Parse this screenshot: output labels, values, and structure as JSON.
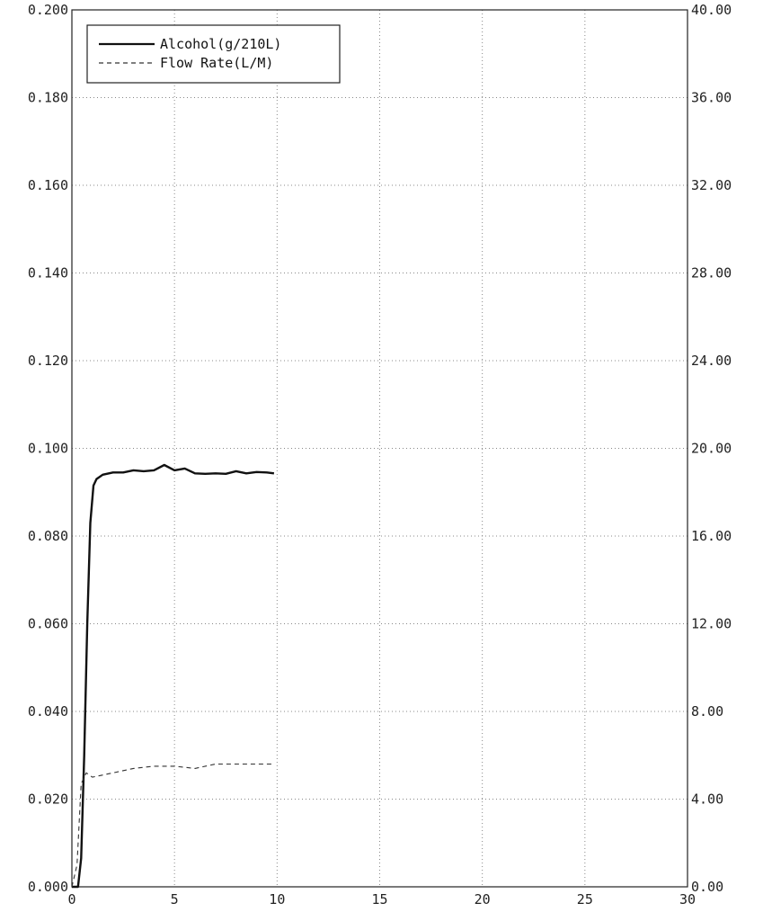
{
  "chart_data": {
    "type": "line",
    "title": "",
    "xlabel": "",
    "ylabel": "",
    "xlim": [
      0,
      30
    ],
    "ylim_left": [
      0,
      0.2
    ],
    "ylim_right": [
      0,
      40
    ],
    "x_ticks": [
      "0",
      "5",
      "10",
      "15",
      "20",
      "25",
      "30"
    ],
    "y_left_ticks": [
      "0.000",
      "0.020",
      "0.040",
      "0.060",
      "0.080",
      "0.100",
      "0.120",
      "0.140",
      "0.160",
      "0.180",
      "0.200"
    ],
    "y_right_ticks": [
      "0.00",
      "4.00",
      "8.00",
      "12.00",
      "16.00",
      "20.00",
      "24.00",
      "28.00",
      "32.00",
      "36.00",
      "40.00"
    ],
    "grid": true,
    "legend_position": "top-left",
    "series": [
      {
        "name": "Alcohol(g/210L)",
        "axis": "left",
        "style": "solid",
        "x": [
          0,
          0.3,
          0.45,
          0.6,
          0.75,
          0.9,
          1.05,
          1.2,
          1.5,
          2.0,
          2.5,
          3.0,
          3.5,
          4.0,
          4.5,
          5.0,
          5.5,
          6.0,
          6.5,
          7.0,
          7.5,
          8.0,
          8.5,
          9.0,
          9.5,
          9.85
        ],
        "y": [
          0.0,
          0.0,
          0.0065,
          0.03,
          0.06,
          0.083,
          0.0915,
          0.093,
          0.094,
          0.0945,
          0.0945,
          0.095,
          0.0948,
          0.095,
          0.0962,
          0.095,
          0.0954,
          0.0943,
          0.0942,
          0.0943,
          0.0942,
          0.0948,
          0.0943,
          0.0946,
          0.0945,
          0.0943
        ]
      },
      {
        "name": "Flow Rate(L/M)",
        "axis": "right",
        "style": "dashed",
        "x": [
          0,
          0.25,
          0.45,
          0.7,
          1.0,
          2.0,
          3.0,
          4.0,
          5.0,
          6.0,
          7.0,
          8.0,
          9.0,
          9.85
        ],
        "y": [
          0.0,
          1.0,
          4.7,
          5.2,
          5.0,
          5.2,
          5.4,
          5.5,
          5.5,
          5.4,
          5.6,
          5.6,
          5.6,
          5.6
        ]
      }
    ]
  }
}
